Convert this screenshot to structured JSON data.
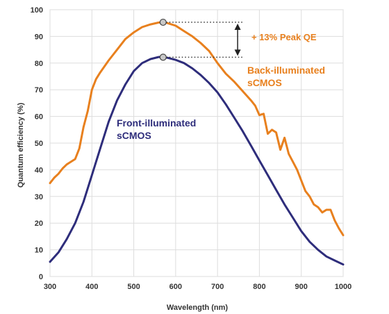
{
  "chart_data": {
    "type": "line",
    "xlabel": "Wavelength (nm)",
    "ylabel": "Quantum efficiency (%)",
    "xlim": [
      300,
      1000
    ],
    "ylim": [
      0,
      100
    ],
    "x_ticks": [
      300,
      400,
      500,
      600,
      700,
      800,
      900,
      1000
    ],
    "y_ticks": [
      0,
      10,
      20,
      30,
      40,
      50,
      60,
      70,
      80,
      90,
      100
    ],
    "grid": true,
    "series": [
      {
        "name": "Back-illuminated sCMOS",
        "label_lines": [
          "Back-illuminated",
          "sCMOS"
        ],
        "color": "#E8801E",
        "x": [
          300,
          310,
          320,
          330,
          340,
          350,
          360,
          370,
          380,
          390,
          400,
          410,
          420,
          440,
          460,
          480,
          500,
          520,
          540,
          560,
          570,
          580,
          600,
          620,
          640,
          660,
          680,
          700,
          720,
          740,
          760,
          780,
          790,
          800,
          810,
          820,
          830,
          840,
          850,
          860,
          870,
          880,
          890,
          900,
          910,
          920,
          930,
          940,
          950,
          960,
          970,
          980,
          990,
          1000
        ],
        "y": [
          35,
          37,
          38.5,
          40.5,
          42,
          43,
          44,
          48,
          56,
          62,
          70,
          74,
          76.5,
          81,
          85,
          89,
          91.5,
          93.5,
          94.5,
          95.2,
          95.3,
          95,
          94,
          92,
          90,
          87.5,
          84.5,
          80,
          76,
          73,
          69.5,
          66,
          64,
          60.5,
          61,
          53.5,
          55,
          54,
          47.5,
          52,
          46,
          43,
          40,
          36,
          32,
          30,
          27,
          26,
          24,
          25,
          25,
          21,
          18,
          15.5
        ]
      },
      {
        "name": "Front-illuminated sCMOS",
        "label_lines": [
          "Front-illuminated",
          "sCMOS"
        ],
        "color": "#2E2D7B",
        "x": [
          300,
          320,
          340,
          360,
          380,
          400,
          420,
          440,
          460,
          480,
          500,
          520,
          540,
          560,
          570,
          580,
          600,
          620,
          640,
          660,
          680,
          700,
          720,
          740,
          760,
          780,
          800,
          820,
          840,
          860,
          880,
          900,
          920,
          940,
          960,
          980,
          1000
        ],
        "y": [
          5.5,
          9,
          14,
          20,
          28,
          38,
          48,
          58,
          66,
          72,
          77,
          80,
          81.5,
          82.3,
          82.2,
          82,
          81.2,
          80,
          78,
          75.5,
          72.5,
          69,
          64.5,
          59.5,
          54.5,
          49,
          43.5,
          38,
          32.5,
          27,
          22,
          17,
          13,
          10,
          7.5,
          6,
          4.5
        ]
      }
    ],
    "peak_markers": [
      {
        "x": 570,
        "y": 95.3
      },
      {
        "x": 570,
        "y": 82.2
      }
    ],
    "annotations": [
      {
        "text": "+ 13% Peak QE"
      }
    ]
  }
}
